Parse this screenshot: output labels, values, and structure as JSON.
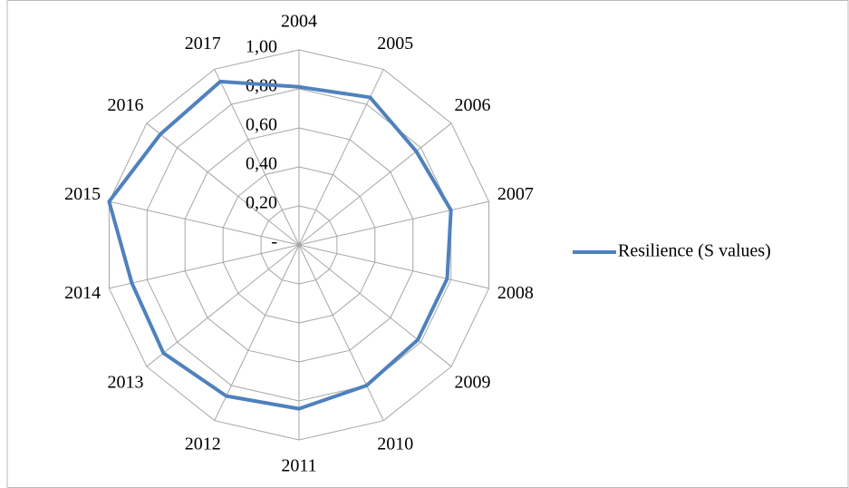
{
  "chart_data": {
    "type": "radar",
    "categories": [
      "2004",
      "2005",
      "2006",
      "2007",
      "2008",
      "2009",
      "2010",
      "2011",
      "2012",
      "2013",
      "2014",
      "2015",
      "2016",
      "2017"
    ],
    "series": [
      {
        "name": "Resilience (S values)",
        "color": "#4f81bd",
        "values": [
          0.81,
          0.84,
          0.77,
          0.8,
          0.78,
          0.78,
          0.8,
          0.84,
          0.86,
          0.89,
          0.88,
          1.0,
          0.91,
          0.93
        ]
      }
    ],
    "ylim": [
      0,
      1
    ],
    "yticks": [
      {
        "value": 0,
        "label": "-"
      },
      {
        "value": 0.2,
        "label": "0,20"
      },
      {
        "value": 0.4,
        "label": "0,40"
      },
      {
        "value": 0.6,
        "label": "0,60"
      },
      {
        "value": 0.8,
        "label": "0,80"
      },
      {
        "value": 1,
        "label": "1,00"
      }
    ],
    "grid": true,
    "legend": "right"
  }
}
